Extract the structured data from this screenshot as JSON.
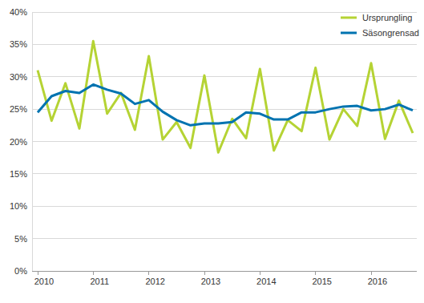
{
  "chart_data": {
    "type": "line",
    "categories": [
      "2010",
      null,
      null,
      null,
      "2011",
      null,
      null,
      null,
      "2012",
      null,
      null,
      null,
      "2013",
      null,
      null,
      null,
      "2014",
      null,
      null,
      null,
      "2015",
      null,
      null,
      null,
      "2016",
      null,
      null,
      null
    ],
    "series": [
      {
        "name": "Ursprungling",
        "color": "#b5d334",
        "values": [
          31,
          23.2,
          29,
          22,
          35.5,
          24.3,
          27.5,
          21.8,
          33.2,
          20.3,
          23,
          19,
          30.2,
          18.3,
          23.5,
          20.5,
          31.2,
          18.6,
          23.3,
          21.6,
          31.4,
          20.3,
          25,
          22.4,
          32.1,
          20.4,
          26.3,
          21.3
        ]
      },
      {
        "name": "Säsongrensad",
        "color": "#0073b0",
        "values": [
          24.5,
          27,
          27.8,
          27.5,
          28.8,
          28,
          27.4,
          25.8,
          26.4,
          24.6,
          23.3,
          22.5,
          22.8,
          22.8,
          23,
          24.5,
          24.3,
          23.4,
          23.4,
          24.5,
          24.5,
          25,
          25.4,
          25.5,
          24.8,
          25,
          25.7,
          24.8
        ]
      }
    ],
    "ylim": [
      0,
      40
    ],
    "yticks": [
      {
        "value": 0,
        "label": "0%"
      },
      {
        "value": 5,
        "label": "5%"
      },
      {
        "value": 10,
        "label": "10%"
      },
      {
        "value": 15,
        "label": "15%"
      },
      {
        "value": 20,
        "label": "20%"
      },
      {
        "value": 25,
        "label": "25%"
      },
      {
        "value": 30,
        "label": "30%"
      },
      {
        "value": 35,
        "label": "35%"
      },
      {
        "value": 40,
        "label": "40%"
      }
    ],
    "grid": true,
    "legend": "top-right"
  }
}
